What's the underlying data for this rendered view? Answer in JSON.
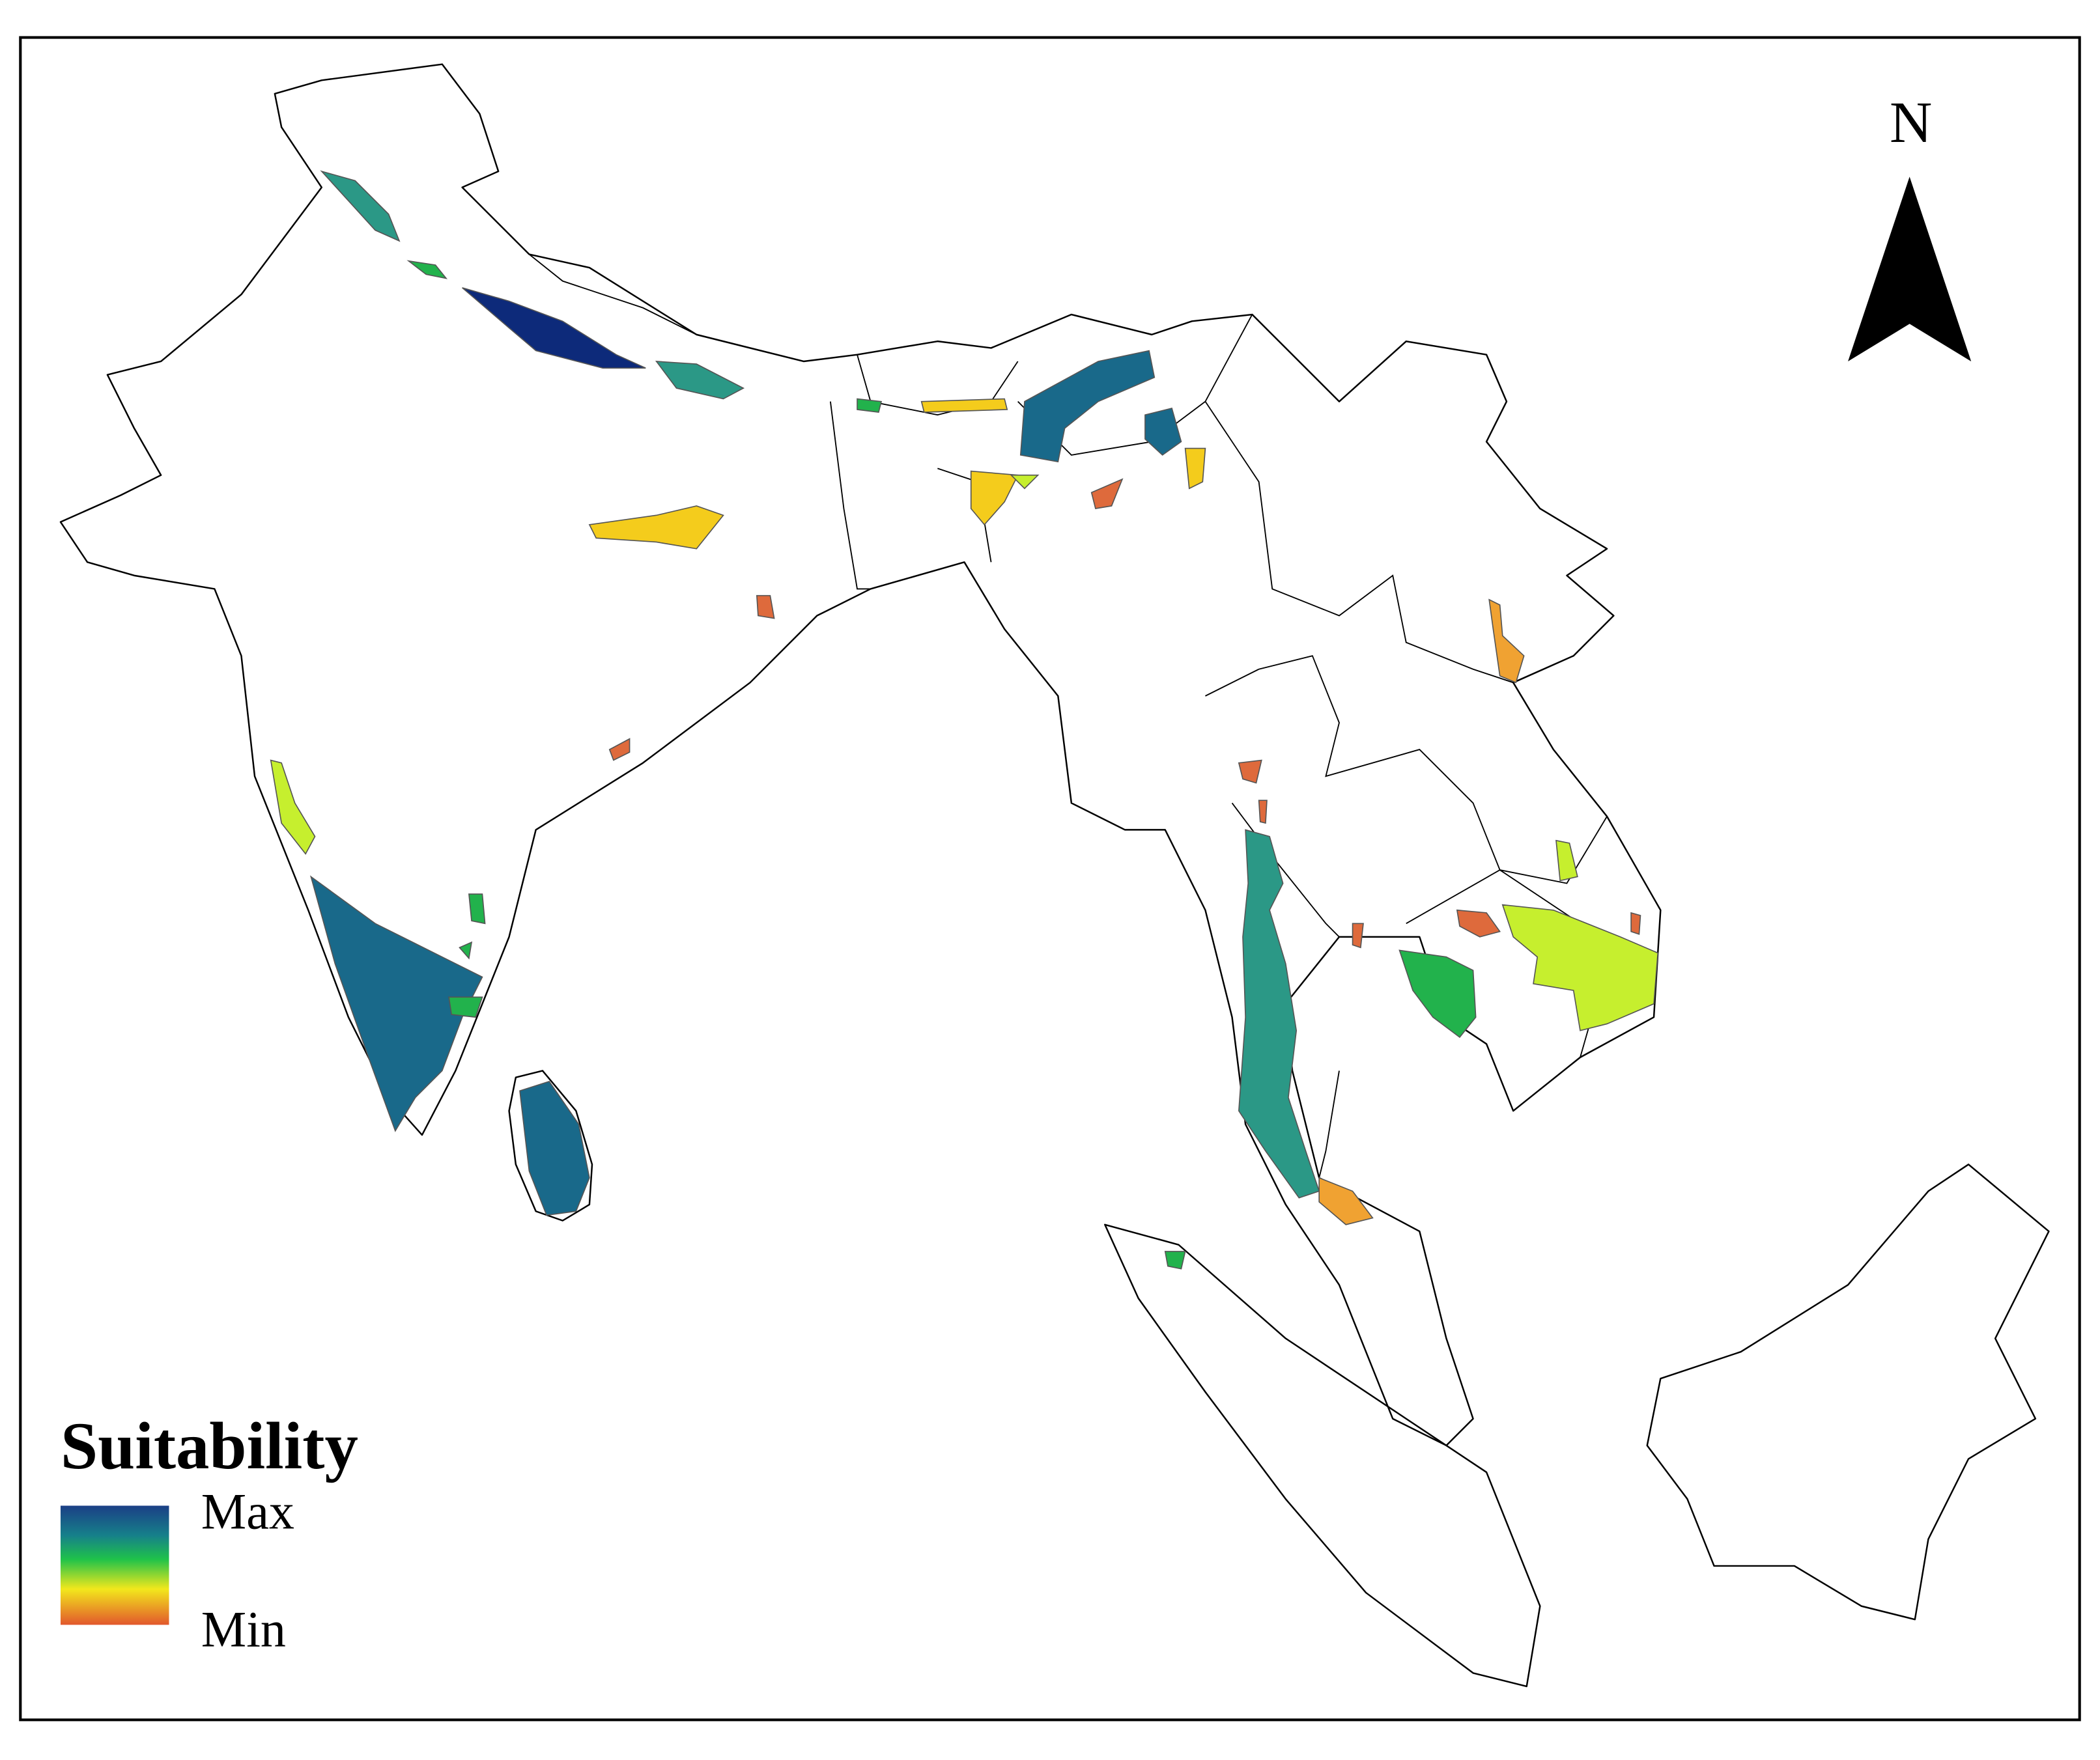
{
  "north_arrow": {
    "label": "N"
  },
  "legend": {
    "title": "Suitability",
    "max_label": "Max",
    "min_label": "Min"
  }
}
